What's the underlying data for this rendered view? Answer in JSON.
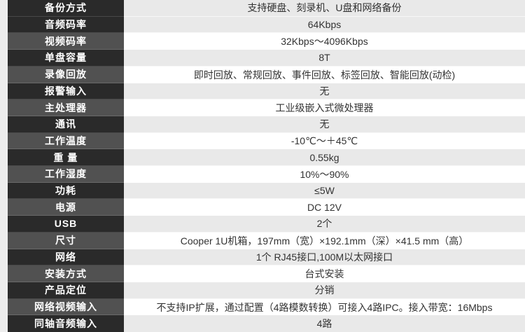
{
  "page": {
    "bg": "#ededed"
  },
  "table": {
    "colors": {
      "label_dark": "#2a2a2a",
      "label_gray": "#515151",
      "label_text": "#ffffff",
      "value_white": "#ffffff",
      "value_gray": "#e9e9e9",
      "value_text": "#333333"
    },
    "rows": [
      {
        "label": "备份方式",
        "value": "支持硬盘、刻录机、U盘和网络备份",
        "label_shade": "dark",
        "value_shade": "gray"
      },
      {
        "label": "音频码率",
        "value": "64Kbps",
        "label_shade": "dark",
        "value_shade": "gray"
      },
      {
        "label": "视频码率",
        "value": "32Kbps～4096Kbps",
        "label_shade": "gray",
        "value_shade": "white"
      },
      {
        "label": "单盘容量",
        "value": "8T",
        "label_shade": "dark",
        "value_shade": "gray"
      },
      {
        "label": "录像回放",
        "value": "即时回放、常规回放、事件回放、标签回放、智能回放(动检)",
        "label_shade": "gray",
        "value_shade": "white"
      },
      {
        "label": "报警输入",
        "value": "无",
        "label_shade": "dark",
        "value_shade": "gray"
      },
      {
        "label": "主处理器",
        "value": "工业级嵌入式微处理器",
        "label_shade": "gray",
        "value_shade": "white"
      },
      {
        "label": "通讯",
        "value": "无",
        "label_shade": "dark",
        "value_shade": "gray"
      },
      {
        "label": "工作温度",
        "value": "-10℃～＋45℃",
        "label_shade": "gray",
        "value_shade": "white"
      },
      {
        "label": "重 量",
        "value": "0.55kg",
        "label_shade": "dark",
        "value_shade": "gray"
      },
      {
        "label": "工作湿度",
        "value": "10%～90%",
        "label_shade": "gray",
        "value_shade": "white"
      },
      {
        "label": "功耗",
        "value": "≤5W",
        "label_shade": "dark",
        "value_shade": "gray"
      },
      {
        "label": "电源",
        "value": "DC 12V",
        "label_shade": "gray",
        "value_shade": "white"
      },
      {
        "label": "USB",
        "value": "2个",
        "label_shade": "dark",
        "value_shade": "gray"
      },
      {
        "label": "尺寸",
        "value": "Cooper 1U机箱，197mm（宽）×192.1mm（深）×41.5 mm（高）",
        "label_shade": "gray",
        "value_shade": "white"
      },
      {
        "label": "网络",
        "value": "1个 RJ45接口,100M以太网接口",
        "label_shade": "dark",
        "value_shade": "gray"
      },
      {
        "label": "安装方式",
        "value": "台式安装",
        "label_shade": "gray",
        "value_shade": "white"
      },
      {
        "label": "产品定位",
        "value": "分销",
        "label_shade": "dark",
        "value_shade": "gray"
      },
      {
        "label": "网络视频输入",
        "value": "不支持IP扩展，通过配置（4路模数转换）可接入4路IPC。接入带宽：16Mbps",
        "label_shade": "gray",
        "value_shade": "white"
      },
      {
        "label": "同轴音频输入",
        "value": "4路",
        "label_shade": "dark",
        "value_shade": "gray"
      }
    ]
  }
}
